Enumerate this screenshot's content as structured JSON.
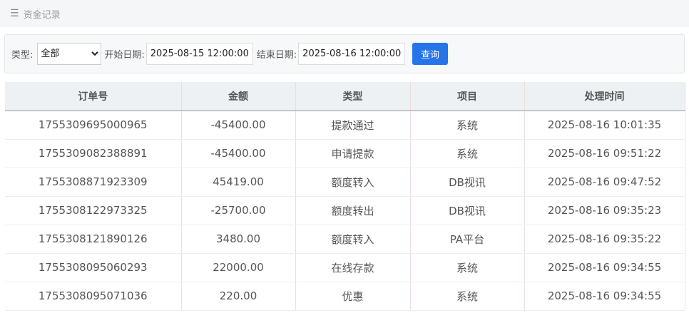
{
  "header": {
    "title": "资金记录",
    "menu_icon": "hamburger-icon"
  },
  "filter": {
    "type_label": "类型:",
    "type_value": "全部",
    "start_label": "开始日期:",
    "start_value": "2025-08-15 12:00:00",
    "end_label": "结束日期:",
    "end_value": "2025-08-16 12:00:00",
    "query_label": "查询"
  },
  "table": {
    "columns": [
      "订单号",
      "金额",
      "类型",
      "项目",
      "处理时间"
    ],
    "rows": [
      [
        "1755309695000965",
        "-45400.00",
        "提款通过",
        "系统",
        "2025-08-16 10:01:35"
      ],
      [
        "1755309082388891",
        "-45400.00",
        "申请提款",
        "系统",
        "2025-08-16 09:51:22"
      ],
      [
        "1755308871923309",
        "45419.00",
        "额度转入",
        "DB视讯",
        "2025-08-16 09:47:52"
      ],
      [
        "1755308122973325",
        "-25700.00",
        "额度转出",
        "DB视讯",
        "2025-08-16 09:35:23"
      ],
      [
        "1755308121890126",
        "3480.00",
        "额度转入",
        "PA平台",
        "2025-08-16 09:35:22"
      ],
      [
        "1755308095060293",
        "22000.00",
        "在线存款",
        "系统",
        "2025-08-16 09:34:55"
      ],
      [
        "1755308095071036",
        "220.00",
        "优惠",
        "系统",
        "2025-08-16 09:34:55"
      ]
    ]
  }
}
